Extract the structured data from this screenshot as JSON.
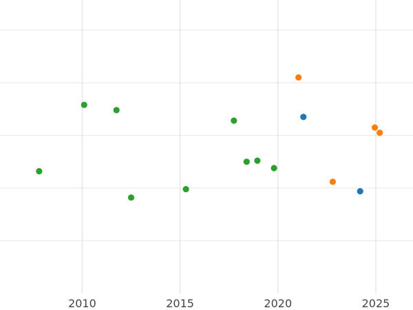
{
  "chart_data": {
    "type": "scatter",
    "title": "",
    "xlabel": "",
    "ylabel": "",
    "xlim": [
      2005.8,
      2026.9
    ],
    "ylim": [
      0,
      5.4
    ],
    "x_ticks": [
      2010,
      2015,
      2020,
      2025
    ],
    "x_tick_labels": [
      "2010",
      "2015",
      "2020",
      "2025"
    ],
    "y_gridlines": [
      1,
      2,
      3,
      4,
      5
    ],
    "grid": true,
    "legend": "none",
    "series": [
      {
        "color": "#2ca02c",
        "points": [
          {
            "x": 2007.8,
            "y": 2.32
          },
          {
            "x": 2010.1,
            "y": 3.58
          },
          {
            "x": 2011.75,
            "y": 3.48
          },
          {
            "x": 2012.5,
            "y": 1.82
          },
          {
            "x": 2015.3,
            "y": 1.98
          },
          {
            "x": 2017.75,
            "y": 3.28
          },
          {
            "x": 2018.4,
            "y": 2.5
          },
          {
            "x": 2018.95,
            "y": 2.52
          },
          {
            "x": 2019.8,
            "y": 2.38
          }
        ]
      },
      {
        "color": "#ff7f0e",
        "points": [
          {
            "x": 2021.05,
            "y": 4.1
          },
          {
            "x": 2022.8,
            "y": 2.12
          },
          {
            "x": 2024.95,
            "y": 3.15
          },
          {
            "x": 2025.2,
            "y": 3.05
          }
        ]
      },
      {
        "color": "#1f77b4",
        "points": [
          {
            "x": 2021.3,
            "y": 3.35
          },
          {
            "x": 2024.2,
            "y": 1.94
          }
        ]
      }
    ]
  }
}
